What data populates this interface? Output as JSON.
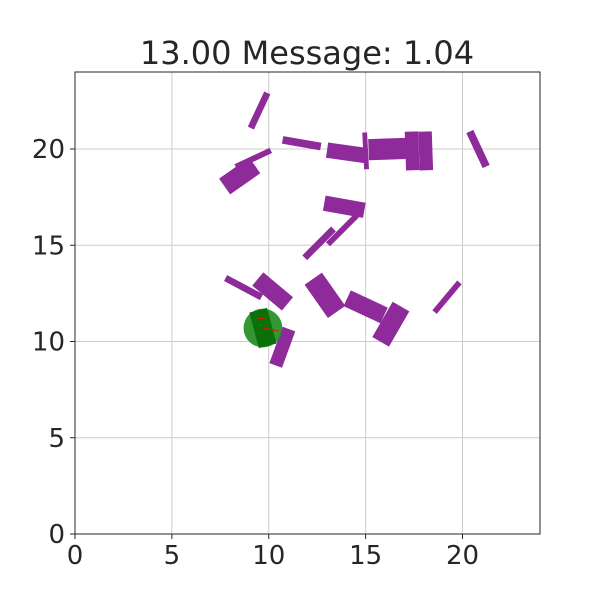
{
  "chart_data": {
    "type": "scatter",
    "title": "13.00 Message: 1.04",
    "xlabel": "",
    "ylabel": "",
    "xlim": [
      0,
      24
    ],
    "ylim": [
      0,
      24
    ],
    "xticks": [
      0,
      5,
      10,
      15,
      20
    ],
    "yticks": [
      0,
      5,
      10,
      15,
      20
    ],
    "grid": true,
    "colors": {
      "obstacle": "#8e2a9a",
      "agent": "#1e8c1e",
      "agent_body": "#0a700a",
      "heading": "#cc2200",
      "grid": "#cccccc",
      "frame": "#262626"
    },
    "obstacles": [
      {
        "cx": 9.5,
        "cy": 22.0,
        "len": 2.0,
        "wid": 0.35,
        "angle": 65
      },
      {
        "cx": 9.2,
        "cy": 19.5,
        "len": 2.0,
        "wid": 0.3,
        "angle": 25
      },
      {
        "cx": 8.5,
        "cy": 18.6,
        "len": 1.9,
        "wid": 1.0,
        "angle": 35
      },
      {
        "cx": 11.7,
        "cy": 20.3,
        "len": 2.0,
        "wid": 0.4,
        "angle": -10
      },
      {
        "cx": 14.0,
        "cy": 19.8,
        "len": 2.0,
        "wid": 0.8,
        "angle": -8
      },
      {
        "cx": 15.0,
        "cy": 19.9,
        "len": 1.9,
        "wid": 0.25,
        "angle": -87
      },
      {
        "cx": 16.2,
        "cy": 20.0,
        "len": 2.1,
        "wid": 1.1,
        "angle": 2
      },
      {
        "cx": 17.4,
        "cy": 19.9,
        "len": 2.0,
        "wid": 0.7,
        "angle": -88
      },
      {
        "cx": 18.1,
        "cy": 19.9,
        "len": 2.0,
        "wid": 0.7,
        "angle": -88
      },
      {
        "cx": 20.8,
        "cy": 20.0,
        "len": 2.0,
        "wid": 0.4,
        "angle": -65
      },
      {
        "cx": 13.9,
        "cy": 17.0,
        "len": 2.1,
        "wid": 0.8,
        "angle": -10
      },
      {
        "cx": 12.6,
        "cy": 15.1,
        "len": 2.1,
        "wid": 0.35,
        "angle": 45
      },
      {
        "cx": 13.8,
        "cy": 15.8,
        "len": 2.1,
        "wid": 0.3,
        "angle": 45
      },
      {
        "cx": 8.7,
        "cy": 12.8,
        "len": 2.1,
        "wid": 0.35,
        "angle": -28
      },
      {
        "cx": 10.2,
        "cy": 12.6,
        "len": 2.0,
        "wid": 0.9,
        "angle": -40
      },
      {
        "cx": 12.9,
        "cy": 12.4,
        "len": 2.1,
        "wid": 1.1,
        "angle": -55
      },
      {
        "cx": 15.0,
        "cy": 11.8,
        "len": 2.1,
        "wid": 0.9,
        "angle": -25
      },
      {
        "cx": 16.3,
        "cy": 10.9,
        "len": 2.1,
        "wid": 1.0,
        "angle": 60
      },
      {
        "cx": 19.2,
        "cy": 12.3,
        "len": 2.0,
        "wid": 0.3,
        "angle": 50
      },
      {
        "cx": 10.7,
        "cy": 9.7,
        "len": 2.0,
        "wid": 0.7,
        "angle": 70
      }
    ],
    "agent": {
      "x": 9.7,
      "y": 10.7,
      "radius": 1.0,
      "body": {
        "len": 1.9,
        "wid": 0.95,
        "angle": -75
      },
      "heading": {
        "dx": 0.8,
        "dy": -0.15
      }
    }
  }
}
